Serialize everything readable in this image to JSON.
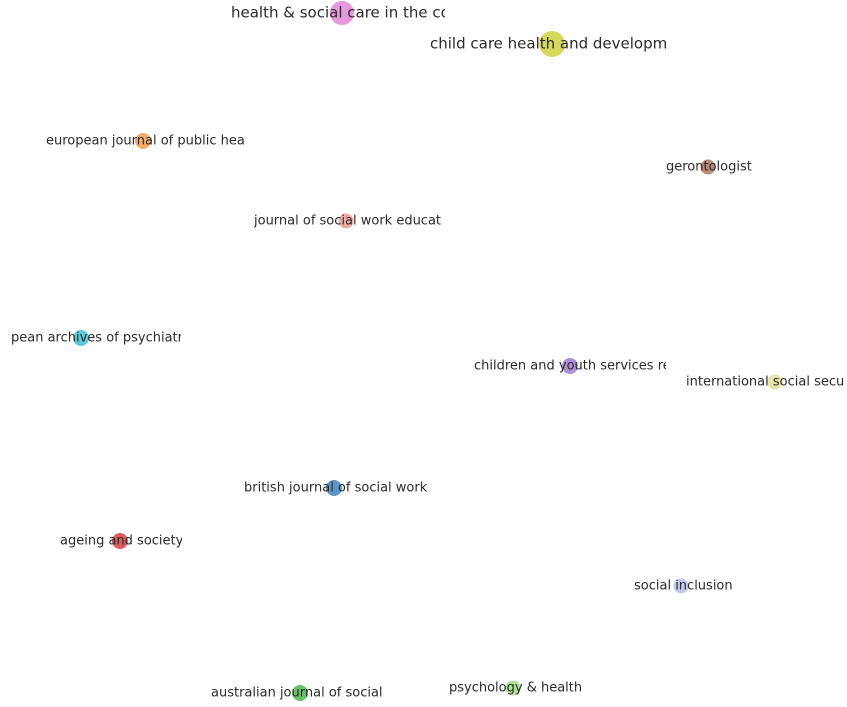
{
  "nodes": [
    {
      "label": "health & social care in the co",
      "color": "#e58ed9"
    },
    {
      "label": "child care health and developm",
      "color": "#d3d552"
    },
    {
      "label": "european journal of public hea",
      "color": "#f4a55a"
    },
    {
      "label": "gerontologist",
      "color": "#b07f6c"
    },
    {
      "label": "journal of social work educati",
      "color": "#f0a3a0"
    },
    {
      "label": "pean archives of psychiatr",
      "color": "#4fc6d6"
    },
    {
      "label": "children and youth services re",
      "color": "#a785cf"
    },
    {
      "label": "international social secur",
      "color": "#e4e3a2"
    },
    {
      "label": "british journal of social work",
      "color": "#4f8dc2"
    },
    {
      "label": "ageing and society",
      "color": "#d94f4f"
    },
    {
      "label": "social inclusion",
      "color": "#b9c7e9"
    },
    {
      "label": "australian journal of social i",
      "color": "#5cbc5c"
    },
    {
      "label": "psychology & health",
      "color": "#a8de8d"
    }
  ]
}
